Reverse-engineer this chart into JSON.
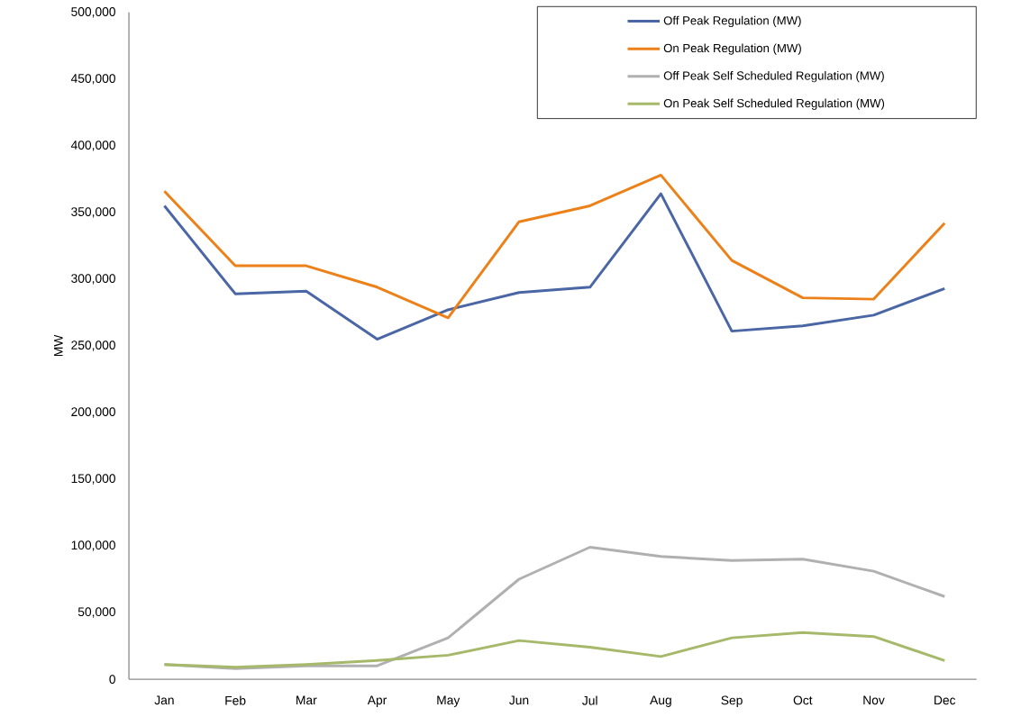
{
  "chart_data": {
    "type": "line",
    "ylabel": "MW",
    "categories": [
      "Jan",
      "Feb",
      "Mar",
      "Apr",
      "May",
      "Jun",
      "Jul",
      "Aug",
      "Sep",
      "Oct",
      "Nov",
      "Dec"
    ],
    "series": [
      {
        "name": "Off Peak Regulation (MW)",
        "color": "#4a66a4",
        "values": [
          355000,
          289000,
          291000,
          255000,
          277000,
          290000,
          294000,
          364000,
          261000,
          265000,
          273000,
          293000
        ]
      },
      {
        "name": "On Peak Regulation (MW)",
        "color": "#ec8119",
        "values": [
          366000,
          310000,
          310000,
          294000,
          271000,
          343000,
          355000,
          378000,
          314000,
          286000,
          285000,
          342000
        ]
      },
      {
        "name": "Off Peak Self Scheduled Regulation (MW)",
        "color": "#b0b0b0",
        "values": [
          11000,
          8000,
          10000,
          10000,
          31000,
          75000,
          99000,
          92000,
          89000,
          90000,
          81000,
          62000
        ]
      },
      {
        "name": "On Peak Self Scheduled Regulation (MW)",
        "color": "#a6b96a",
        "values": [
          11000,
          9000,
          11000,
          14000,
          18000,
          29000,
          24000,
          17000,
          31000,
          35000,
          32000,
          14000
        ]
      }
    ],
    "ylim": [
      0,
      500000
    ],
    "yticks": [
      0,
      {
        "value": 50000,
        "label": "50,000"
      },
      {
        "value": 100000,
        "label": "100,000"
      },
      {
        "value": 150000,
        "label": "150,000"
      },
      {
        "value": 200000,
        "label": "200,000"
      },
      {
        "value": 250000,
        "label": "250,000"
      },
      {
        "value": 300000,
        "label": "300,000"
      },
      {
        "value": 350000,
        "label": "350,000"
      },
      {
        "value": 400000,
        "label": "400,000"
      },
      {
        "value": 450000,
        "label": "450,000"
      },
      {
        "value": 500000,
        "label": "500,000"
      }
    ],
    "grid": false,
    "legend": "top right",
    "marker": "none",
    "line_style": "solid"
  }
}
